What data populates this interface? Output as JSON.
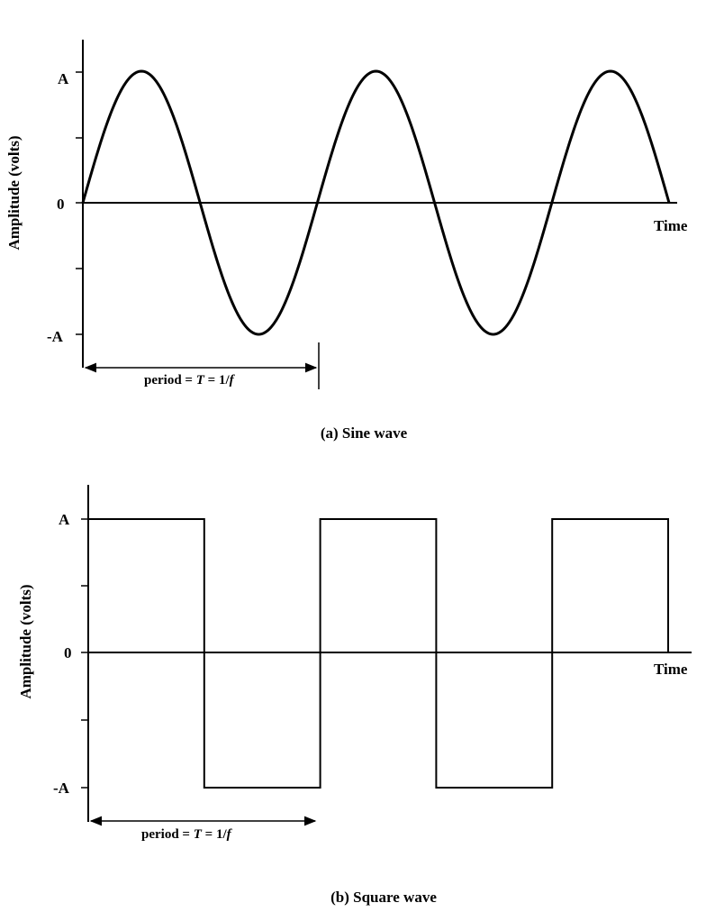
{
  "sine": {
    "y_label": "Amplitude (volts)",
    "tick_top": "A",
    "tick_zero": "0",
    "tick_bottom": "-A",
    "x_label": "Time",
    "period_prefix": "period = ",
    "period_T": "T",
    "period_eq": " = 1/",
    "period_f": "f",
    "caption": "(a) Sine wave"
  },
  "square": {
    "y_label": "Amplitude (volts)",
    "tick_top": "A",
    "tick_zero": "0",
    "tick_bottom": "-A",
    "x_label": "Time",
    "period_prefix": "period = ",
    "period_T": "T",
    "period_eq": " = 1/",
    "period_f": "f",
    "caption": "(b) Square wave"
  },
  "waves": {
    "cycles": 2.5
  }
}
